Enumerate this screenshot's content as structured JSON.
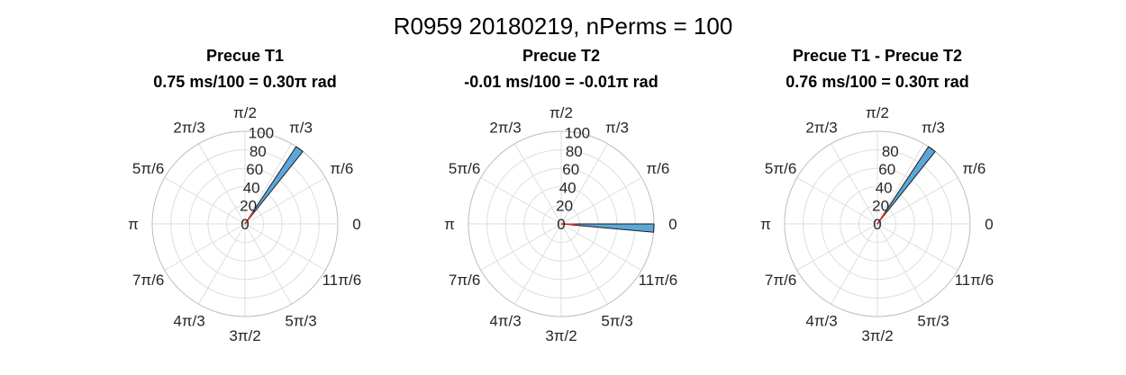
{
  "figure_title": "R0959 20180219, nPerms = 100",
  "colors": {
    "bar_fill": "#5ca7d9",
    "bar_edge": "#1a1a1a",
    "mean_vector": "#d62728",
    "grid": "#dedede",
    "text": "#262626"
  },
  "chart_data": [
    {
      "type": "polar-histogram",
      "title": "Precue T1",
      "subtitle": "0.75 ms/100 = 0.30π rad",
      "theta_tick_labels": [
        "0",
        "π/6",
        "π/3",
        "π/2",
        "2π/3",
        "5π/6",
        "π",
        "7π/6",
        "4π/3",
        "3π/2",
        "5π/3",
        "11π/6"
      ],
      "r_ticks": [
        0,
        20,
        40,
        60,
        80,
        100
      ],
      "rlim": [
        0,
        100
      ],
      "bars": [
        {
          "theta_start_pi": 0.2857,
          "theta_end_pi": 0.3143,
          "count": 100
        }
      ],
      "mean_angle_pi": 0.3,
      "mean_length": 0.16
    },
    {
      "type": "polar-histogram",
      "title": "Precue T2",
      "subtitle": "-0.01 ms/100 = -0.01π rad",
      "theta_tick_labels": [
        "0",
        "π/6",
        "π/3",
        "π/2",
        "2π/3",
        "5π/6",
        "π",
        "7π/6",
        "4π/3",
        "3π/2",
        "5π/3",
        "11π/6"
      ],
      "r_ticks": [
        0,
        20,
        40,
        60,
        80,
        100
      ],
      "rlim": [
        0,
        100
      ],
      "bars": [
        {
          "theta_start_pi": -0.0286,
          "theta_end_pi": 0.0,
          "count": 100
        }
      ],
      "mean_angle_pi": -0.01,
      "mean_length": 0.18
    },
    {
      "type": "polar-histogram",
      "title": "Precue T1 - Precue T2",
      "subtitle": "0.76 ms/100 = 0.30π rad",
      "theta_tick_labels": [
        "0",
        "π/6",
        "π/3",
        "π/2",
        "2π/3",
        "5π/6",
        "π",
        "7π/6",
        "4π/3",
        "3π/2",
        "5π/3",
        "11π/6"
      ],
      "r_ticks": [
        0,
        20,
        40,
        60,
        80
      ],
      "rlim": [
        0,
        100
      ],
      "bars": [
        {
          "theta_start_pi": 0.2857,
          "theta_end_pi": 0.3143,
          "count": 100
        }
      ],
      "mean_angle_pi": 0.3,
      "mean_length": 0.16
    }
  ]
}
